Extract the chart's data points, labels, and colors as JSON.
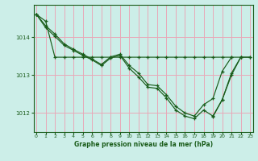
{
  "title": "Graphe pression niveau de la mer (hPa)",
  "bg_color": "#cceee8",
  "grid_color": "#e8a8b8",
  "line_color": "#1a5c1a",
  "ylim": [
    1011.5,
    1014.85
  ],
  "xlim": [
    -0.3,
    23.3
  ],
  "yticks": [
    1012,
    1013,
    1014
  ],
  "xticks": [
    0,
    1,
    2,
    3,
    4,
    5,
    6,
    7,
    8,
    9,
    10,
    11,
    12,
    13,
    14,
    15,
    16,
    17,
    18,
    19,
    20,
    21,
    22,
    23
  ],
  "series": [
    {
      "x": [
        0,
        1,
        2,
        3,
        4,
        5,
        6,
        7,
        8,
        9,
        10,
        11,
        12,
        13,
        14,
        15,
        16,
        17,
        18,
        19,
        20,
        21,
        22,
        23
      ],
      "y": [
        1014.6,
        1014.42,
        1013.47,
        1013.47,
        1013.47,
        1013.47,
        1013.47,
        1013.47,
        1013.47,
        1013.47,
        1013.47,
        1013.47,
        1013.47,
        1013.47,
        1013.47,
        1013.47,
        1013.47,
        1013.47,
        1013.47,
        1013.47,
        1013.47,
        1013.47,
        1013.47,
        1013.47
      ]
    },
    {
      "x": [
        0,
        1,
        2,
        3,
        4,
        5,
        6,
        7,
        8,
        9,
        10,
        11,
        12,
        13,
        14,
        15,
        16,
        17,
        18,
        19,
        20,
        21,
        22,
        23
      ],
      "y": [
        1014.6,
        1014.3,
        1014.08,
        1013.82,
        1013.68,
        1013.55,
        1013.42,
        1013.28,
        1013.48,
        1013.55,
        1013.25,
        1013.05,
        1012.75,
        1012.72,
        1012.48,
        1012.18,
        1012.0,
        1011.92,
        1012.22,
        1012.38,
        1013.1,
        1013.47,
        null,
        null
      ]
    },
    {
      "x": [
        0,
        1,
        2,
        3,
        4,
        5,
        6,
        7,
        8,
        9,
        10,
        11,
        12,
        13,
        14,
        15,
        16,
        17,
        18,
        19,
        20,
        21,
        22,
        23
      ],
      "y": [
        1014.6,
        1014.25,
        1014.02,
        1013.78,
        1013.65,
        1013.52,
        1013.4,
        1013.25,
        1013.45,
        1013.52,
        1013.18,
        1012.95,
        1012.68,
        1012.65,
        1012.4,
        1012.08,
        1011.92,
        1011.85,
        1012.08,
        1011.92,
        1012.35,
        1013.0,
        1013.47,
        null
      ]
    },
    {
      "x": [
        19,
        20,
        21,
        22,
        23
      ],
      "y": [
        1011.9,
        1012.35,
        1013.05,
        1013.47,
        1013.47
      ]
    }
  ]
}
